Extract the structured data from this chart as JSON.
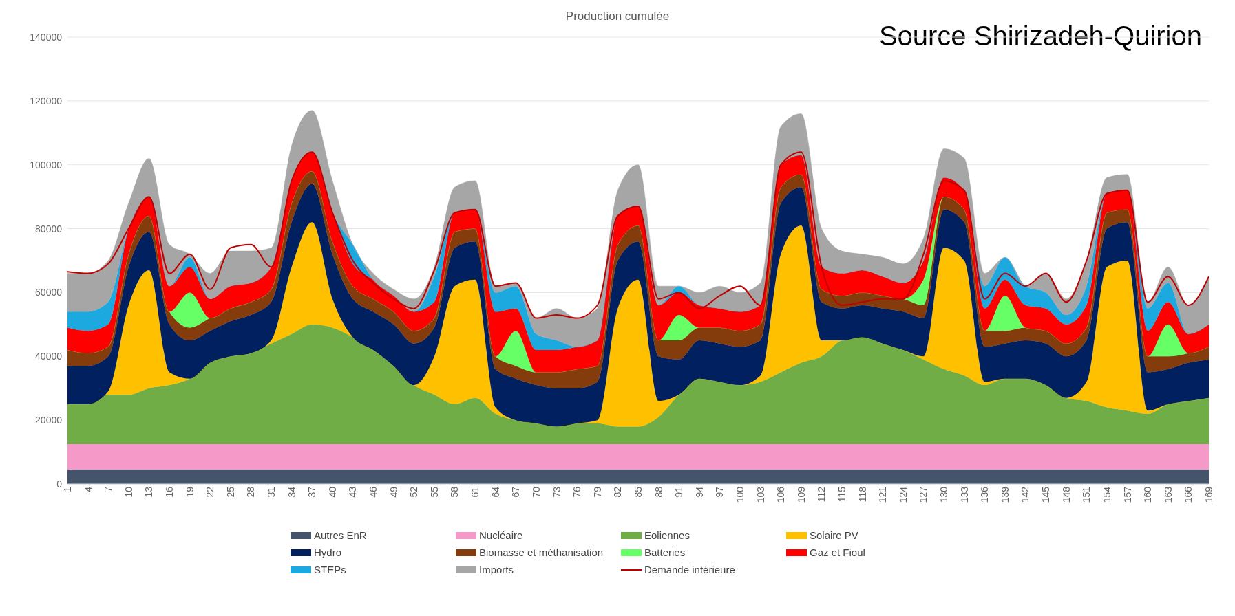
{
  "chart_data": {
    "type": "area",
    "stacked": true,
    "title": "Production cumulée",
    "annotations": [
      "Source Shirizadeh-Quirion"
    ],
    "x": [
      1,
      4,
      7,
      10,
      13,
      16,
      19,
      22,
      25,
      28,
      31,
      34,
      37,
      40,
      43,
      46,
      49,
      52,
      55,
      58,
      61,
      64,
      67,
      70,
      73,
      76,
      79,
      82,
      85,
      88,
      91,
      94,
      97,
      100,
      103,
      106,
      109,
      112,
      115,
      118,
      121,
      124,
      127,
      130,
      133,
      136,
      139,
      142,
      145,
      148,
      151,
      154,
      157,
      160,
      163,
      166,
      169
    ],
    "xlim": [
      1,
      169
    ],
    "xticks": [
      1,
      4,
      7,
      10,
      13,
      16,
      19,
      22,
      25,
      28,
      31,
      34,
      37,
      40,
      43,
      46,
      49,
      52,
      55,
      58,
      61,
      64,
      67,
      70,
      73,
      76,
      79,
      82,
      85,
      88,
      91,
      94,
      97,
      100,
      103,
      106,
      109,
      112,
      115,
      118,
      121,
      124,
      127,
      130,
      133,
      136,
      139,
      142,
      145,
      148,
      151,
      154,
      157,
      160,
      163,
      166,
      169
    ],
    "ylim": [
      0,
      140000
    ],
    "yticks": [
      0,
      20000,
      40000,
      60000,
      80000,
      100000,
      120000,
      140000
    ],
    "grid": "y",
    "legend": "bottom",
    "series": [
      {
        "name": "Autres EnR",
        "color": "#44546a",
        "values": [
          4500,
          4500,
          4500,
          4500,
          4500,
          4500,
          4500,
          4500,
          4500,
          4500,
          4500,
          4500,
          4500,
          4500,
          4500,
          4500,
          4500,
          4500,
          4500,
          4500,
          4500,
          4500,
          4500,
          4500,
          4500,
          4500,
          4500,
          4500,
          4500,
          4500,
          4500,
          4500,
          4500,
          4500,
          4500,
          4500,
          4500,
          4500,
          4500,
          4500,
          4500,
          4500,
          4500,
          4500,
          4500,
          4500,
          4500,
          4500,
          4500,
          4500,
          4500,
          4500,
          4500,
          4500,
          4500,
          4500,
          4500
        ]
      },
      {
        "name": "Nucléaire",
        "color": "#f59ac8",
        "values": [
          8000,
          8000,
          8000,
          8000,
          8000,
          8000,
          8000,
          8000,
          8000,
          8000,
          8000,
          8000,
          8000,
          8000,
          8000,
          8000,
          8000,
          8000,
          8000,
          8000,
          8000,
          8000,
          8000,
          8000,
          8000,
          8000,
          8000,
          8000,
          8000,
          8000,
          8000,
          8000,
          8000,
          8000,
          8000,
          8000,
          8000,
          8000,
          8000,
          8000,
          8000,
          8000,
          8000,
          8000,
          8000,
          8000,
          8000,
          8000,
          8000,
          8000,
          8000,
          8000,
          8000,
          8000,
          8000,
          8000,
          8000
        ]
      },
      {
        "name": "Eoliennes",
        "color": "#70ad47",
        "values": [
          12500,
          12500,
          15500,
          15500,
          17500,
          18500,
          20500,
          25500,
          27500,
          28500,
          31500,
          34500,
          37500,
          36500,
          33500,
          29500,
          24500,
          18500,
          15500,
          12500,
          14500,
          9500,
          7500,
          6500,
          5500,
          6500,
          6500,
          5500,
          5500,
          8500,
          15500,
          20500,
          19500,
          18500,
          19500,
          22500,
          25500,
          27500,
          32500,
          33500,
          31500,
          29500,
          26500,
          23500,
          21500,
          18500,
          20500,
          20500,
          18500,
          14500,
          13500,
          11500,
          10500,
          9500,
          12500,
          13500,
          14500
        ]
      },
      {
        "name": "Solaire PV",
        "color": "#ffc000",
        "values": [
          0,
          0,
          1000,
          28000,
          37000,
          4000,
          0,
          0,
          0,
          0,
          1000,
          21000,
          32000,
          9000,
          0,
          0,
          0,
          0,
          12000,
          37000,
          37000,
          2000,
          0,
          0,
          0,
          0,
          1000,
          37000,
          46000,
          5000,
          0,
          0,
          0,
          0,
          2000,
          37000,
          43000,
          5000,
          0,
          0,
          0,
          0,
          1000,
          38000,
          36000,
          1000,
          0,
          0,
          0,
          0,
          6000,
          44000,
          47000,
          1000,
          0,
          0,
          0
        ]
      },
      {
        "name": "Hydro",
        "color": "#002060",
        "values": [
          12000,
          12000,
          11000,
          12000,
          12000,
          15000,
          12000,
          10000,
          11000,
          12000,
          12000,
          14000,
          12000,
          14000,
          12000,
          12000,
          13000,
          13000,
          9000,
          12000,
          12000,
          12000,
          13000,
          12000,
          12000,
          11000,
          12000,
          15000,
          12000,
          14000,
          11000,
          12000,
          12000,
          12000,
          11000,
          16000,
          12000,
          12000,
          10000,
          10000,
          11000,
          12000,
          12000,
          12000,
          12000,
          11000,
          11000,
          12000,
          13000,
          13000,
          13000,
          12000,
          12000,
          12000,
          11000,
          12000,
          12000
        ]
      },
      {
        "name": "Biomasse et méthanisation",
        "color": "#843c0c",
        "values": [
          5000,
          4000,
          3000,
          4000,
          5000,
          4000,
          4000,
          4000,
          4000,
          4000,
          4000,
          6000,
          4000,
          4000,
          4000,
          4000,
          4000,
          4000,
          3000,
          5000,
          4000,
          4000,
          4000,
          4000,
          5000,
          6000,
          5000,
          5000,
          5000,
          5000,
          6000,
          4000,
          5000,
          5000,
          5000,
          5000,
          4000,
          4000,
          4000,
          4000,
          4000,
          4000,
          4000,
          4000,
          4000,
          5000,
          4000,
          4000,
          4000,
          4000,
          4000,
          5000,
          4000,
          5000,
          4000,
          3000,
          4000
        ]
      },
      {
        "name": "Batteries",
        "color": "#66ff66",
        "values": [
          0,
          0,
          0,
          0,
          0,
          0,
          11000,
          0,
          0,
          0,
          0,
          0,
          0,
          0,
          0,
          0,
          0,
          0,
          0,
          0,
          0,
          0,
          11000,
          0,
          0,
          0,
          0,
          0,
          0,
          0,
          8000,
          0,
          0,
          0,
          0,
          0,
          0,
          0,
          0,
          0,
          0,
          0,
          8000,
          0,
          0,
          0,
          11000,
          0,
          0,
          0,
          0,
          0,
          0,
          0,
          10000,
          0,
          0
        ]
      },
      {
        "name": "Gaz et Fioul",
        "color": "#ff0000",
        "values": [
          7000,
          7000,
          7000,
          8000,
          6000,
          8000,
          8000,
          6000,
          7000,
          6000,
          7000,
          7000,
          6000,
          9000,
          7000,
          6000,
          5000,
          6000,
          5000,
          6000,
          6000,
          14000,
          7000,
          7000,
          7000,
          7000,
          8000,
          9000,
          6000,
          11000,
          7000,
          7000,
          6000,
          6000,
          6000,
          7000,
          6000,
          7000,
          7000,
          7000,
          6000,
          5000,
          6000,
          6000,
          6000,
          7000,
          5000,
          7000,
          7000,
          6000,
          7000,
          6000,
          6000,
          8000,
          7000,
          6000,
          7000
        ]
      },
      {
        "name": "STEPs",
        "color": "#1ca9e0",
        "values": [
          5000,
          6000,
          7000,
          0,
          0,
          0,
          3000,
          0,
          0,
          0,
          0,
          0,
          0,
          0,
          6000,
          0,
          0,
          0,
          8000,
          0,
          0,
          6000,
          7000,
          5000,
          3000,
          0,
          0,
          0,
          0,
          0,
          2000,
          0,
          0,
          0,
          0,
          0,
          0,
          0,
          0,
          0,
          0,
          0,
          0,
          0,
          0,
          7000,
          7000,
          6000,
          5000,
          3000,
          6000,
          0,
          0,
          7000,
          6000,
          0,
          0
        ]
      },
      {
        "name": "Imports",
        "color": "#a6a6a6",
        "values": [
          12000,
          12000,
          13000,
          8000,
          12000,
          13000,
          1000,
          8000,
          11000,
          10000,
          6000,
          11000,
          13000,
          10000,
          0,
          2000,
          2000,
          4000,
          3000,
          8000,
          9000,
          2000,
          1000,
          5000,
          10000,
          9000,
          10000,
          8000,
          13000,
          6000,
          0,
          4000,
          7000,
          6000,
          7000,
          12000,
          13000,
          12000,
          7000,
          5000,
          6000,
          6000,
          7000,
          9000,
          10000,
          4000,
          0,
          0,
          6000,
          5000,
          8000,
          5000,
          5000,
          2000,
          5000,
          9000,
          15000
        ]
      },
      {
        "name": "Demande intérieure",
        "type": "line",
        "color": "#c00000",
        "values": [
          66500,
          66000,
          69000,
          80000,
          90000,
          66000,
          72000,
          61000,
          74000,
          75000,
          68000,
          95000,
          104000,
          85000,
          70000,
          63000,
          58000,
          55000,
          67000,
          85000,
          86000,
          62000,
          63000,
          52000,
          53000,
          52000,
          56000,
          84000,
          87000,
          58000,
          60000,
          55000,
          59000,
          62000,
          56000,
          100000,
          104000,
          68000,
          56000,
          57000,
          58000,
          58000,
          72000,
          95000,
          92000,
          58000,
          66000,
          62000,
          66000,
          57000,
          70000,
          91000,
          92000,
          57000,
          65000,
          56000,
          65000
        ]
      }
    ]
  }
}
